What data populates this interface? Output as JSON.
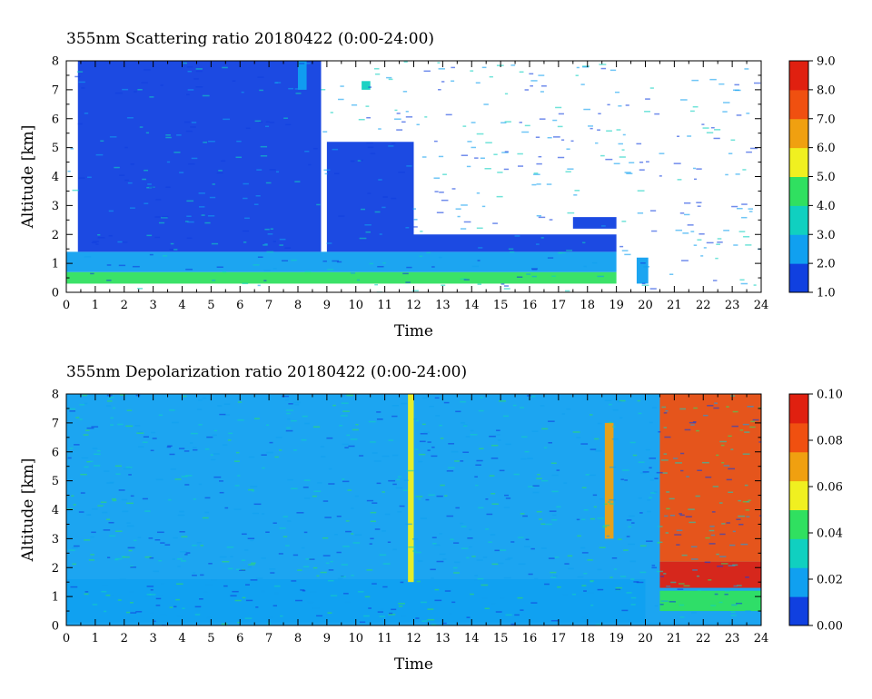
{
  "chart_data": [
    {
      "type": "heatmap",
      "title": "355nm Scattering ratio  20180422 (0:00-24:00)",
      "xlabel": "Time",
      "ylabel": "Altitude [km]",
      "xlim": [
        0,
        24
      ],
      "ylim": [
        0,
        8
      ],
      "x_ticks": [
        "0",
        "1",
        "2",
        "3",
        "4",
        "5",
        "6",
        "7",
        "8",
        "9",
        "10",
        "11",
        "12",
        "13",
        "14",
        "15",
        "16",
        "17",
        "18",
        "19",
        "20",
        "21",
        "22",
        "23",
        "24"
      ],
      "y_ticks": [
        "0",
        "1",
        "2",
        "3",
        "4",
        "5",
        "6",
        "7",
        "8"
      ],
      "colorbar": {
        "range": [
          1.0,
          9.0
        ],
        "ticks": [
          "1.0",
          "2.0",
          "3.0",
          "4.0",
          "5.0",
          "6.0",
          "7.0",
          "8.0",
          "9.0"
        ],
        "colors": [
          "#1040e0",
          "#10a0f0",
          "#10d0c0",
          "#30e060",
          "#f0f020",
          "#f0a010",
          "#f05010",
          "#e02010"
        ]
      },
      "features": [
        {
          "x": [
            0,
            19
          ],
          "y": [
            0.3,
            0.7
          ],
          "value": 4.5
        },
        {
          "x": [
            0,
            19
          ],
          "y": [
            0.7,
            1.4
          ],
          "value": 2.5
        },
        {
          "x": [
            0.4,
            8.8
          ],
          "y": [
            1.4,
            8.0
          ],
          "value": 1.6
        },
        {
          "x": [
            9,
            12
          ],
          "y": [
            1.4,
            5.2
          ],
          "value": 1.6
        },
        {
          "x": [
            12,
            19
          ],
          "y": [
            1.4,
            2.0
          ],
          "value": 1.6
        },
        {
          "x": [
            17.5,
            19
          ],
          "y": [
            2.2,
            2.6
          ],
          "value": 1.7
        },
        {
          "x": [
            19.7,
            20.1
          ],
          "y": [
            0.3,
            1.2
          ],
          "value": 2.0
        },
        {
          "x": [
            10.2,
            10.5
          ],
          "y": [
            7.0,
            7.3
          ],
          "value": 3.5
        },
        {
          "x": [
            8.0,
            8.3
          ],
          "y": [
            7.0,
            8.0
          ],
          "value": 2.8
        }
      ]
    },
    {
      "type": "heatmap",
      "title": "355nm Depolarization ratio  20180422 (0:00-24:00)",
      "xlabel": "Time",
      "ylabel": "Altitude [km]",
      "xlim": [
        0,
        24
      ],
      "ylim": [
        0,
        8
      ],
      "x_ticks": [
        "0",
        "1",
        "2",
        "3",
        "4",
        "5",
        "6",
        "7",
        "8",
        "9",
        "10",
        "11",
        "12",
        "13",
        "14",
        "15",
        "16",
        "17",
        "18",
        "19",
        "20",
        "21",
        "22",
        "23",
        "24"
      ],
      "y_ticks": [
        "0",
        "1",
        "2",
        "3",
        "4",
        "5",
        "6",
        "7",
        "8"
      ],
      "colorbar": {
        "range": [
          0.0,
          0.1
        ],
        "ticks": [
          "0.00",
          "0.02",
          "0.04",
          "0.06",
          "0.08",
          "0.10"
        ],
        "colors": [
          "#1040e0",
          "#10a0f0",
          "#10d0c0",
          "#30e060",
          "#f0f020",
          "#f0a010",
          "#f05010",
          "#e02010"
        ]
      },
      "features": [
        {
          "x": [
            0,
            24
          ],
          "y": [
            0,
            8
          ],
          "value": 0.02
        },
        {
          "x": [
            0,
            20
          ],
          "y": [
            0.1,
            1.6
          ],
          "value": 0.018
        },
        {
          "x": [
            20.5,
            24
          ],
          "y": [
            2.2,
            8.0
          ],
          "value": 0.085
        },
        {
          "x": [
            20.5,
            24
          ],
          "y": [
            1.3,
            2.2
          ],
          "value": 0.1
        },
        {
          "x": [
            20.5,
            24
          ],
          "y": [
            0.5,
            1.2
          ],
          "value": 0.045
        },
        {
          "x": [
            11.8,
            12.0
          ],
          "y": [
            1.5,
            8.0
          ],
          "value": 0.06
        },
        {
          "x": [
            18.6,
            18.9
          ],
          "y": [
            3.0,
            7.0
          ],
          "value": 0.07
        }
      ]
    }
  ]
}
